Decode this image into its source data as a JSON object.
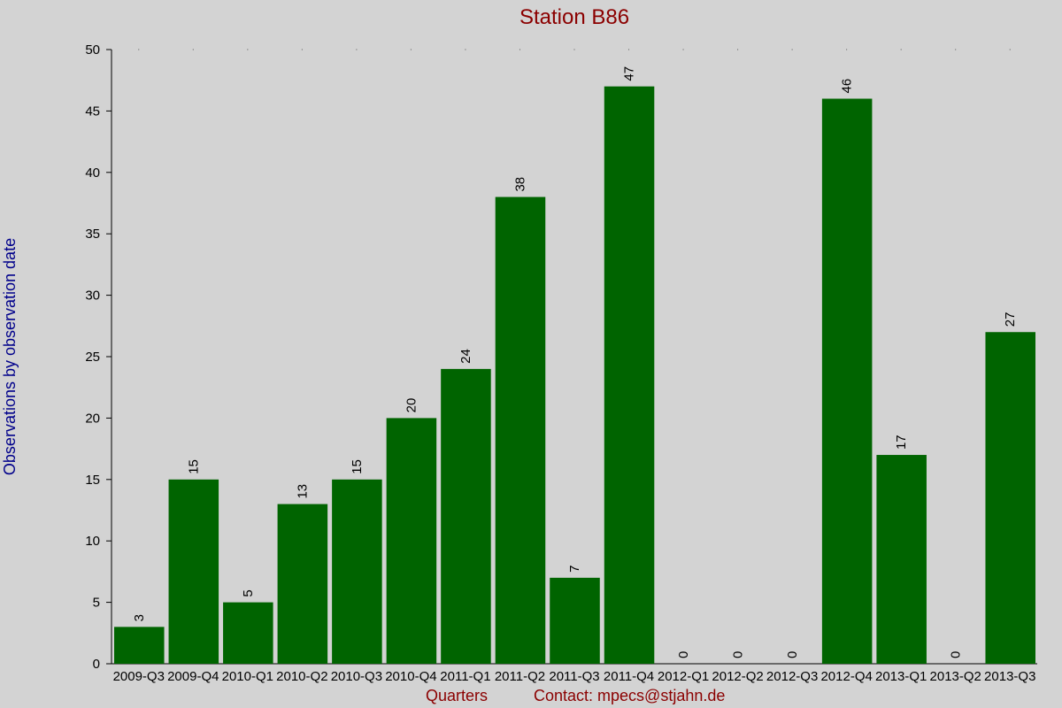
{
  "chart_data": {
    "type": "bar",
    "title": "Station B86",
    "xlabel": "Quarters",
    "ylabel": "Observations by observation date",
    "contact": "Contact: mpecs@stjahn.de",
    "categories": [
      "2009-Q3",
      "2009-Q4",
      "2010-Q1",
      "2010-Q2",
      "2010-Q3",
      "2010-Q4",
      "2011-Q1",
      "2011-Q2",
      "2011-Q3",
      "2011-Q4",
      "2012-Q1",
      "2012-Q2",
      "2012-Q3",
      "2012-Q4",
      "2013-Q1",
      "2013-Q2",
      "2013-Q3"
    ],
    "values": [
      3,
      15,
      5,
      13,
      15,
      20,
      24,
      38,
      7,
      47,
      0,
      0,
      0,
      46,
      17,
      0,
      27
    ],
    "ylim": [
      0,
      50
    ],
    "yticks": [
      0,
      5,
      10,
      15,
      20,
      25,
      30,
      35,
      40,
      45,
      50
    ],
    "bar_color": "#006400",
    "grid": false
  }
}
